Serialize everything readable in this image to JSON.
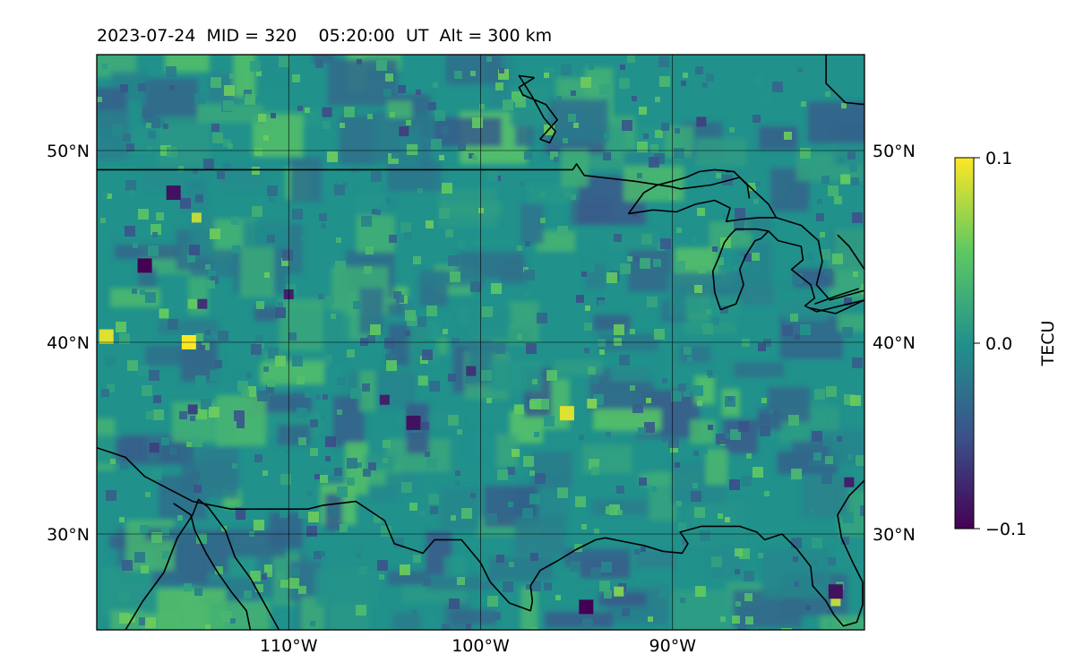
{
  "title": "2023-07-24  MID = 320    05:20:00  UT  Alt = 300 km",
  "map": {
    "lon_range": [
      -120,
      -80
    ],
    "lat_range": [
      25,
      55
    ],
    "lat_ticks": [
      {
        "value": 30,
        "label": "30°N"
      },
      {
        "value": 40,
        "label": "40°N"
      },
      {
        "value": 50,
        "label": "50°N"
      }
    ],
    "lon_ticks": [
      {
        "value": -110,
        "label": "110°W"
      },
      {
        "value": -100,
        "label": "100°W"
      },
      {
        "value": -90,
        "label": "90°W"
      }
    ],
    "grid": true,
    "field": "TEC perturbation heatmap (viridis)"
  },
  "colorbar": {
    "label": "TECU",
    "min": -0.1,
    "max": 0.1,
    "ticks": [
      {
        "value": 0.1,
        "label": "0.1"
      },
      {
        "value": 0.0,
        "label": "0.0"
      },
      {
        "value": -0.1,
        "label": "−0.1"
      }
    ],
    "colormap": [
      "#440154",
      "#3b528b",
      "#21918c",
      "#5ec962",
      "#fde725"
    ]
  },
  "anomalies": [
    {
      "lon": -115.2,
      "lat": 40.0,
      "value": 0.1
    },
    {
      "lon": -114.8,
      "lat": 46.5,
      "value": 0.08
    },
    {
      "lon": -119.5,
      "lat": 40.3,
      "value": 0.09
    },
    {
      "lon": -115.0,
      "lat": 42.0,
      "value": 0.05
    },
    {
      "lon": -116.5,
      "lat": 41.5,
      "value": 0.05
    },
    {
      "lon": -95.5,
      "lat": 36.3,
      "value": 0.09
    },
    {
      "lon": -94.2,
      "lat": 36.8,
      "value": 0.06
    },
    {
      "lon": -98.0,
      "lat": 36.5,
      "value": 0.05
    },
    {
      "lon": -103.0,
      "lat": 38.0,
      "value": 0.04
    },
    {
      "lon": -92.8,
      "lat": 27.0,
      "value": 0.06
    },
    {
      "lon": -81.5,
      "lat": 26.5,
      "value": 0.08
    },
    {
      "lon": -81.0,
      "lat": 48.5,
      "value": 0.05
    },
    {
      "lon": -117.5,
      "lat": 44.0,
      "value": -0.1
    },
    {
      "lon": -116.0,
      "lat": 47.8,
      "value": -0.09
    },
    {
      "lon": -114.5,
      "lat": 42.0,
      "value": -0.07
    },
    {
      "lon": -110.0,
      "lat": 42.5,
      "value": -0.08
    },
    {
      "lon": -115.0,
      "lat": 36.5,
      "value": -0.06
    },
    {
      "lon": -117.0,
      "lat": 34.5,
      "value": -0.06
    },
    {
      "lon": -103.5,
      "lat": 35.8,
      "value": -0.09
    },
    {
      "lon": -105.0,
      "lat": 37.0,
      "value": -0.08
    },
    {
      "lon": -100.5,
      "lat": 38.5,
      "value": -0.07
    },
    {
      "lon": -94.5,
      "lat": 26.2,
      "value": -0.1
    },
    {
      "lon": -81.5,
      "lat": 27.0,
      "value": -0.09
    },
    {
      "lon": -80.8,
      "lat": 32.7,
      "value": -0.08
    },
    {
      "lon": -88.5,
      "lat": 51.5,
      "value": -0.06
    },
    {
      "lon": -104.0,
      "lat": 51.0,
      "value": -0.06
    },
    {
      "lon": -108.0,
      "lat": 52.0,
      "value": -0.05
    },
    {
      "lon": -112.5,
      "lat": 31.0,
      "value": -0.05
    }
  ],
  "coastlines": [
    [
      [
        -120,
        34.5
      ],
      [
        -118.5,
        34
      ],
      [
        -117.5,
        33
      ],
      [
        -115,
        31.7
      ],
      [
        -113,
        31.3
      ],
      [
        -111,
        31.3
      ],
      [
        -109,
        31.3
      ],
      [
        -108.2,
        31.5
      ],
      [
        -106.5,
        31.7
      ],
      [
        -105,
        30.7
      ],
      [
        -104.5,
        29.5
      ],
      [
        -103,
        29
      ],
      [
        -102.4,
        29.7
      ],
      [
        -101,
        29.7
      ],
      [
        -100,
        28.5
      ],
      [
        -99.5,
        27.5
      ],
      [
        -98.5,
        26.4
      ],
      [
        -97.4,
        26
      ],
      [
        -97.3,
        26.5
      ],
      [
        -97.4,
        27.3
      ],
      [
        -96.9,
        28.1
      ],
      [
        -96,
        28.6
      ],
      [
        -95,
        29.2
      ],
      [
        -94,
        29.7
      ],
      [
        -93.5,
        29.8
      ],
      [
        -92.5,
        29.6
      ],
      [
        -91.5,
        29.4
      ],
      [
        -90.5,
        29.1
      ],
      [
        -89.5,
        29
      ],
      [
        -89.2,
        29.5
      ],
      [
        -89.6,
        30.1
      ],
      [
        -88.5,
        30.4
      ],
      [
        -87.5,
        30.4
      ],
      [
        -86.5,
        30.4
      ],
      [
        -85.6,
        30.1
      ],
      [
        -85.2,
        29.7
      ],
      [
        -84.3,
        30
      ],
      [
        -83.5,
        29.2
      ],
      [
        -82.8,
        28.3
      ],
      [
        -82.7,
        27.3
      ],
      [
        -82,
        26.5
      ],
      [
        -81.6,
        25.8
      ],
      [
        -81.1,
        25.2
      ],
      [
        -80.4,
        25.4
      ],
      [
        -80.1,
        26.3
      ],
      [
        -80.1,
        27.5
      ],
      [
        -80.6,
        28.5
      ],
      [
        -81.2,
        29.8
      ],
      [
        -81.4,
        31
      ],
      [
        -80.8,
        32
      ],
      [
        -80,
        32.8
      ]
    ],
    [
      [
        -118.5,
        25
      ],
      [
        -117.6,
        26.5
      ],
      [
        -116.5,
        28
      ],
      [
        -115.8,
        29.8
      ],
      [
        -115,
        31
      ],
      [
        -114.7,
        31.8
      ],
      [
        -114.2,
        31.4
      ],
      [
        -113.3,
        30.2
      ],
      [
        -112.8,
        28.8
      ],
      [
        -112,
        27.7
      ],
      [
        -111.5,
        26.8
      ],
      [
        -110.5,
        25
      ]
    ],
    [
      [
        -112,
        25
      ],
      [
        -112.2,
        26
      ],
      [
        -113,
        27
      ],
      [
        -113.7,
        28
      ],
      [
        -114.3,
        29
      ],
      [
        -114.9,
        30.2
      ],
      [
        -115.1,
        31
      ],
      [
        -116,
        31.6
      ]
    ],
    [
      [
        -120,
        49
      ],
      [
        -115,
        49
      ],
      [
        -110,
        49
      ],
      [
        -105,
        49
      ],
      [
        -100,
        49
      ],
      [
        -97.2,
        49
      ],
      [
        -95.2,
        49
      ],
      [
        -95,
        49.3
      ],
      [
        -94.6,
        48.7
      ],
      [
        -92,
        48.4
      ],
      [
        -90,
        48.1
      ],
      [
        -89.6,
        48
      ],
      [
        -88,
        48.2
      ],
      [
        -86.5,
        48.6
      ],
      [
        -85,
        47.2
      ],
      [
        -84.6,
        46.5
      ],
      [
        -83.3,
        46.1
      ],
      [
        -82.4,
        45.3
      ],
      [
        -82.2,
        44.2
      ],
      [
        -82.5,
        43
      ],
      [
        -81.8,
        42.2
      ],
      [
        -80,
        42.7
      ]
    ],
    [
      [
        -92.3,
        46.7
      ],
      [
        -91,
        46.9
      ],
      [
        -89.8,
        46.8
      ],
      [
        -88.8,
        47.2
      ],
      [
        -87.8,
        47.4
      ],
      [
        -87,
        47.0
      ],
      [
        -87.2,
        46.3
      ],
      [
        -86.5,
        46.4
      ],
      [
        -85.5,
        46.5
      ],
      [
        -84.6,
        46.5
      ]
    ],
    [
      [
        -86.8,
        48.9
      ],
      [
        -87.8,
        49.0
      ],
      [
        -88.6,
        48.9
      ],
      [
        -89.3,
        48.6
      ],
      [
        -90,
        48.4
      ],
      [
        -90.8,
        48.2
      ],
      [
        -91.5,
        47.8
      ],
      [
        -92.3,
        46.7
      ]
    ],
    [
      [
        -87.2,
        48.9
      ],
      [
        -86.8,
        48.9
      ],
      [
        -86.1,
        48.2
      ],
      [
        -86,
        47.5
      ]
    ],
    [
      [
        -87.5,
        41.7
      ],
      [
        -87.8,
        42.6
      ],
      [
        -87.9,
        43.7
      ],
      [
        -87.6,
        44.4
      ],
      [
        -87.3,
        45.2
      ],
      [
        -87.0,
        45.6
      ],
      [
        -86.7,
        45.9
      ],
      [
        -85.6,
        45.9
      ],
      [
        -85.0,
        45.8
      ],
      [
        -84.5,
        45.3
      ],
      [
        -83.3,
        45.0
      ],
      [
        -83.2,
        44.3
      ],
      [
        -83.8,
        43.8
      ],
      [
        -82.8,
        43.0
      ],
      [
        -82.6,
        42.3
      ],
      [
        -83.1,
        41.9
      ],
      [
        -82.5,
        41.6
      ],
      [
        -80,
        42.2
      ]
    ],
    [
      [
        -87.5,
        41.7
      ],
      [
        -86.7,
        42.0
      ],
      [
        -86.3,
        43.0
      ],
      [
        -86.5,
        43.8
      ],
      [
        -86.2,
        44.5
      ],
      [
        -85.7,
        45.3
      ],
      [
        -85.4,
        45.4
      ],
      [
        -85.0,
        45.8
      ]
    ],
    [
      [
        -82.6,
        42.0
      ],
      [
        -81.5,
        42.4
      ],
      [
        -80.3,
        42.8
      ]
    ],
    [
      [
        -82.9,
        41.8
      ],
      [
        -81.5,
        41.5
      ],
      [
        -80,
        42.2
      ]
    ],
    [
      [
        -80,
        43.8
      ],
      [
        -80.8,
        45
      ],
      [
        -81.4,
        45.6
      ]
    ],
    [
      [
        -82.0,
        55
      ],
      [
        -82.0,
        53.5
      ],
      [
        -81.0,
        52.5
      ],
      [
        -80,
        52.4
      ]
    ],
    [
      [
        -97.2,
        53.8
      ],
      [
        -98.0,
        53.3
      ],
      [
        -97.8,
        52.9
      ],
      [
        -96.6,
        52.4
      ],
      [
        -96.0,
        51.6
      ],
      [
        -96.9,
        50.6
      ],
      [
        -96.4,
        50.4
      ],
      [
        -96.1,
        51.0
      ],
      [
        -96.7,
        51.7
      ],
      [
        -97.3,
        52.8
      ],
      [
        -98.0,
        53.9
      ],
      [
        -97.2,
        53.8
      ]
    ]
  ]
}
